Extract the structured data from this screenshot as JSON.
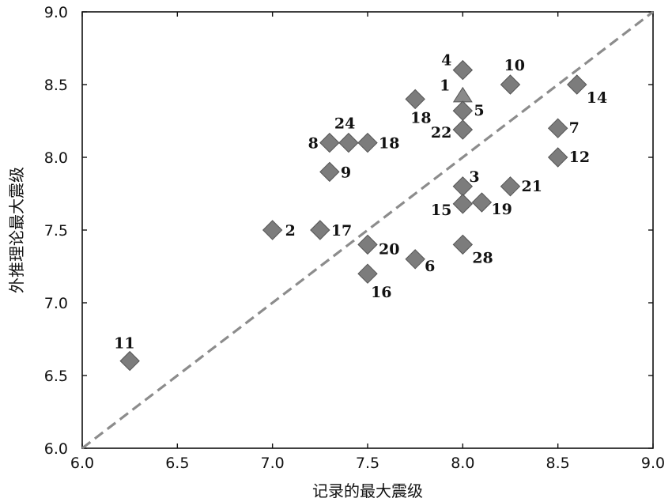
{
  "chart_data": {
    "type": "scatter",
    "xlabel": "记录的最大震级",
    "ylabel": "外推理论最大震级",
    "xlim": [
      6.0,
      9.0
    ],
    "ylim": [
      6.0,
      9.0
    ],
    "x_ticks": [
      "6.0",
      "6.5",
      "7.0",
      "7.5",
      "8.0",
      "8.5",
      "9.0"
    ],
    "y_ticks": [
      "6.0",
      "6.5",
      "7.0",
      "7.5",
      "8.0",
      "8.5",
      "9.0"
    ],
    "reference_line": {
      "style": "dashed",
      "x": [
        6.0,
        9.0
      ],
      "y": [
        6.0,
        9.0
      ]
    },
    "grid": false,
    "marker_color": "#7c7c7c",
    "points": [
      {
        "label": "1",
        "x": 8.0,
        "y": 8.42,
        "marker": "triangle"
      },
      {
        "label": "2",
        "x": 7.0,
        "y": 7.5,
        "marker": "diamond"
      },
      {
        "label": "3",
        "x": 8.0,
        "y": 7.8,
        "marker": "diamond"
      },
      {
        "label": "4",
        "x": 8.0,
        "y": 8.6,
        "marker": "diamond"
      },
      {
        "label": "5",
        "x": 8.0,
        "y": 8.32,
        "marker": "diamond"
      },
      {
        "label": "6",
        "x": 7.75,
        "y": 7.3,
        "marker": "diamond"
      },
      {
        "label": "7",
        "x": 8.5,
        "y": 8.2,
        "marker": "diamond"
      },
      {
        "label": "8",
        "x": 7.3,
        "y": 8.1,
        "marker": "diamond"
      },
      {
        "label": "9",
        "x": 7.3,
        "y": 7.9,
        "marker": "diamond"
      },
      {
        "label": "10",
        "x": 8.25,
        "y": 8.5,
        "marker": "diamond"
      },
      {
        "label": "11",
        "x": 6.25,
        "y": 6.6,
        "marker": "diamond"
      },
      {
        "label": "12",
        "x": 8.5,
        "y": 8.0,
        "marker": "diamond"
      },
      {
        "label": "14",
        "x": 8.6,
        "y": 8.5,
        "marker": "diamond"
      },
      {
        "label": "15",
        "x": 8.0,
        "y": 7.68,
        "marker": "diamond"
      },
      {
        "label": "16",
        "x": 7.5,
        "y": 7.2,
        "marker": "diamond"
      },
      {
        "label": "17",
        "x": 7.25,
        "y": 7.5,
        "marker": "diamond"
      },
      {
        "label": "18",
        "x": 7.5,
        "y": 8.1,
        "marker": "diamond"
      },
      {
        "label": "18",
        "x": 7.75,
        "y": 8.4,
        "marker": "diamond"
      },
      {
        "label": "19",
        "x": 8.1,
        "y": 7.69,
        "marker": "diamond"
      },
      {
        "label": "20",
        "x": 7.5,
        "y": 7.4,
        "marker": "diamond"
      },
      {
        "label": "21",
        "x": 8.25,
        "y": 7.8,
        "marker": "diamond"
      },
      {
        "label": "22",
        "x": 8.0,
        "y": 8.19,
        "marker": "diamond"
      },
      {
        "label": "24",
        "x": 7.4,
        "y": 8.1,
        "marker": "diamond"
      },
      {
        "label": "28",
        "x": 8.0,
        "y": 7.4,
        "marker": "diamond"
      }
    ]
  }
}
